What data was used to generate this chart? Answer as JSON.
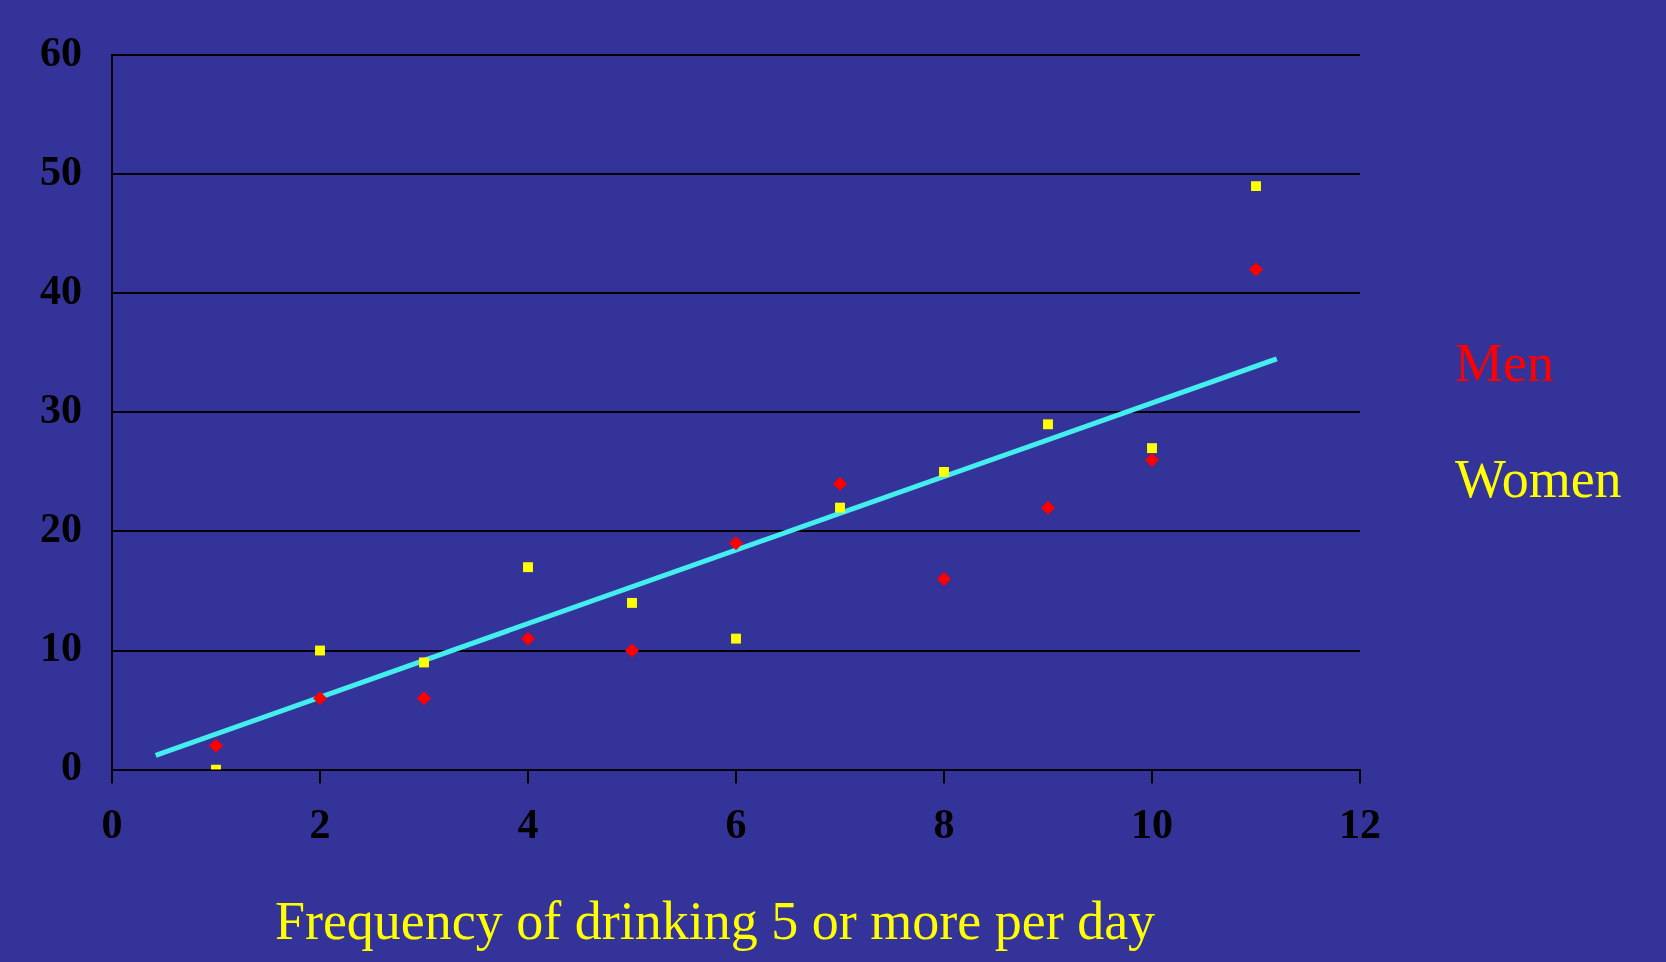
{
  "chart_data": {
    "type": "scatter",
    "xlabel": "Frequency of drinking 5 or more per day",
    "xlim": [
      0,
      12
    ],
    "xticks": [
      0,
      2,
      4,
      6,
      8,
      10,
      12
    ],
    "ylim": [
      0,
      60
    ],
    "yticks": [
      0,
      10,
      20,
      30,
      40,
      50,
      60
    ],
    "grid": "y",
    "legend": "right",
    "series": [
      {
        "name": "Men",
        "color": "#ff0000",
        "marker": "diamond",
        "x": [
          1,
          2,
          3,
          4,
          5,
          6,
          7,
          8,
          9,
          10,
          11
        ],
        "values": [
          2,
          6,
          6,
          11,
          10,
          19,
          24,
          16,
          22,
          26,
          42
        ]
      },
      {
        "name": "Women",
        "color": "#ffff00",
        "marker": "square",
        "x": [
          1,
          2,
          3,
          4,
          5,
          6,
          7,
          8,
          9,
          10,
          11
        ],
        "values": [
          0,
          10,
          9,
          17,
          14,
          11,
          22,
          25,
          29,
          27,
          49
        ]
      },
      {
        "type": "line",
        "color": "#44eeee",
        "marker": "none",
        "x": [
          0.42,
          11.2
        ],
        "values": [
          1.2,
          34.5
        ]
      }
    ]
  }
}
